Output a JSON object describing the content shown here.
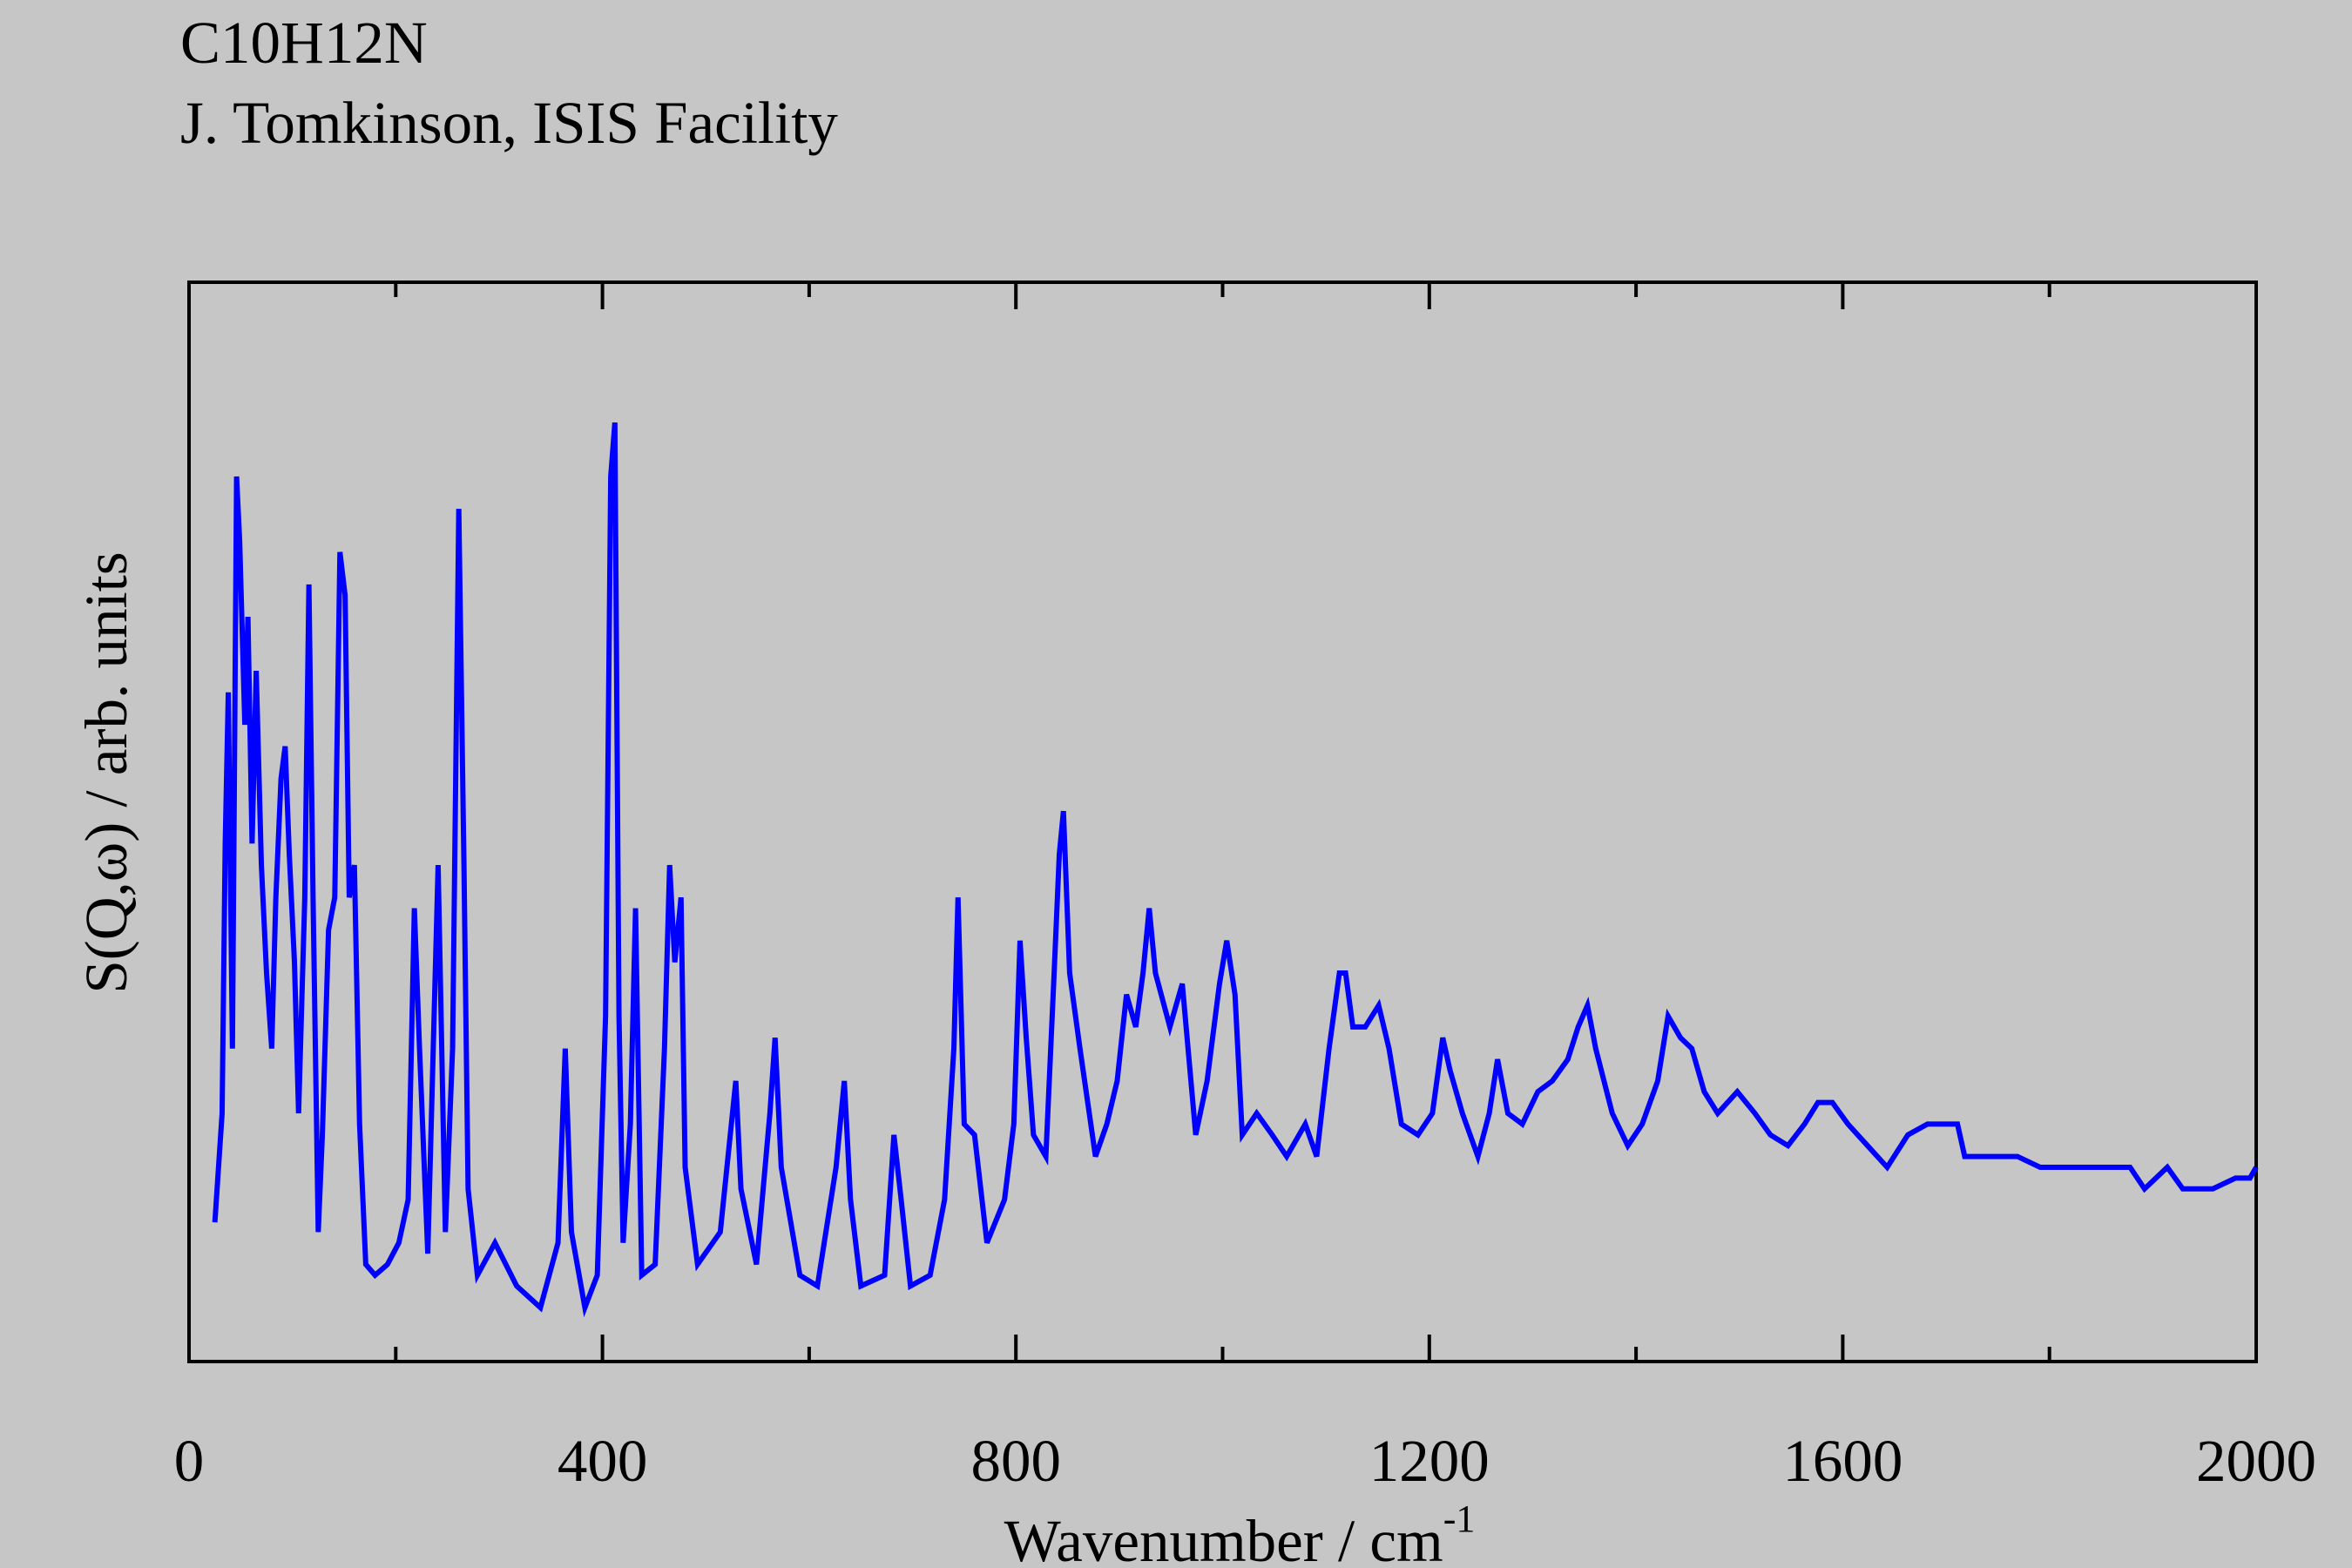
{
  "chart_data": {
    "type": "line",
    "title": "C10H12N",
    "subtitle": "J. Tomkinson, ISIS Facility",
    "xlabel": "Wavenumber / cm",
    "xlabel_superscript": "-1",
    "ylabel": "S(Q,ω) / arb. units",
    "xlim": [
      0,
      2000
    ],
    "ylim": [
      0,
      100
    ],
    "xticks": [
      0,
      400,
      800,
      1200,
      1600,
      2000
    ],
    "xminorticks": [
      200,
      600,
      1000,
      1400,
      1800
    ],
    "series": [
      {
        "color": "#0000ff",
        "x": [
          25,
          32,
          35,
          38,
          42,
          46,
          49,
          54,
          57,
          61,
          65,
          70,
          75,
          80,
          84,
          89,
          93,
          97,
          102,
          106,
          112,
          116,
          120,
          125,
          129,
          135,
          141,
          146,
          151,
          155,
          160,
          165,
          171,
          180,
          192,
          203,
          212,
          218,
          223,
          231,
          241,
          248,
          255,
          261,
          266,
          270,
          279,
          296,
          317,
          340,
          357,
          364,
          370,
          383,
          395,
          403,
          408,
          412,
          416,
          420,
          427,
          432,
          438,
          451,
          460,
          465,
          470,
          476,
          480,
          492,
          514,
          529,
          534,
          549,
          562,
          567,
          573,
          591,
          608,
          626,
          634,
          640,
          650,
          673,
          682,
          689,
          698,
          717,
          731,
          740,
          744,
          750,
          760,
          772,
          789,
          798,
          804,
          810,
          817,
          829,
          837,
          842,
          846,
          852,
          862,
          877,
          888,
          898,
          907,
          916,
          923,
          929,
          935,
          949,
          961,
          974,
          985,
          997,
          1004,
          1012,
          1019,
          1033,
          1048,
          1062,
          1080,
          1091,
          1103,
          1113,
          1119,
          1126,
          1138,
          1151,
          1161,
          1173,
          1189,
          1203,
          1213,
          1220,
          1232,
          1247,
          1258,
          1266,
          1276,
          1290,
          1305,
          1319,
          1334,
          1344,
          1353,
          1361,
          1377,
          1392,
          1406,
          1421,
          1431,
          1443,
          1454,
          1466,
          1479,
          1498,
          1515,
          1530,
          1547,
          1563,
          1576,
          1590,
          1605,
          1624,
          1643,
          1663,
          1682,
          1711,
          1718,
          1747,
          1769,
          1791,
          1820,
          1849,
          1878,
          1892,
          1914,
          1929,
          1958,
          1980,
          1994,
          2000
        ],
        "values": [
          12.9,
          23,
          48,
          62,
          29,
          82,
          76,
          59,
          69,
          48,
          64,
          46,
          36,
          29,
          43,
          54,
          57,
          47,
          37,
          23,
          43,
          72,
          43,
          12,
          21,
          40,
          43,
          75,
          71,
          43,
          46,
          22,
          9,
          8,
          9,
          11,
          15,
          42,
          29,
          10,
          46,
          12,
          29,
          79,
          46,
          16,
          8,
          11,
          7,
          5,
          11,
          29,
          12,
          5,
          8,
          32,
          82,
          87,
          32,
          11,
          22,
          42,
          8,
          9,
          29,
          46,
          37,
          43,
          18,
          9,
          12,
          26,
          16,
          9,
          23,
          30,
          18,
          8,
          7,
          18,
          26,
          15,
          7,
          8,
          21,
          15,
          7,
          8,
          15,
          29,
          43,
          22,
          21,
          11,
          15,
          22,
          39,
          30,
          21,
          19,
          36,
          47,
          51,
          36,
          29,
          19,
          22,
          26,
          34,
          31,
          36,
          42,
          36,
          31,
          35,
          21,
          26,
          35,
          39,
          34,
          21,
          23,
          21,
          19,
          22,
          19,
          29,
          36,
          36,
          31,
          31,
          33,
          29,
          22,
          21,
          23,
          30,
          27,
          23,
          19,
          23,
          28,
          23,
          22,
          25,
          26,
          28,
          31,
          33,
          29,
          23,
          20,
          22,
          26,
          32,
          30,
          29,
          25,
          23,
          25,
          23,
          21,
          20,
          22,
          24,
          24,
          22,
          20,
          18,
          21,
          22,
          22,
          19,
          19,
          19,
          18,
          18,
          18,
          18,
          16,
          18,
          16,
          16,
          17,
          17,
          18
        ]
      }
    ]
  }
}
